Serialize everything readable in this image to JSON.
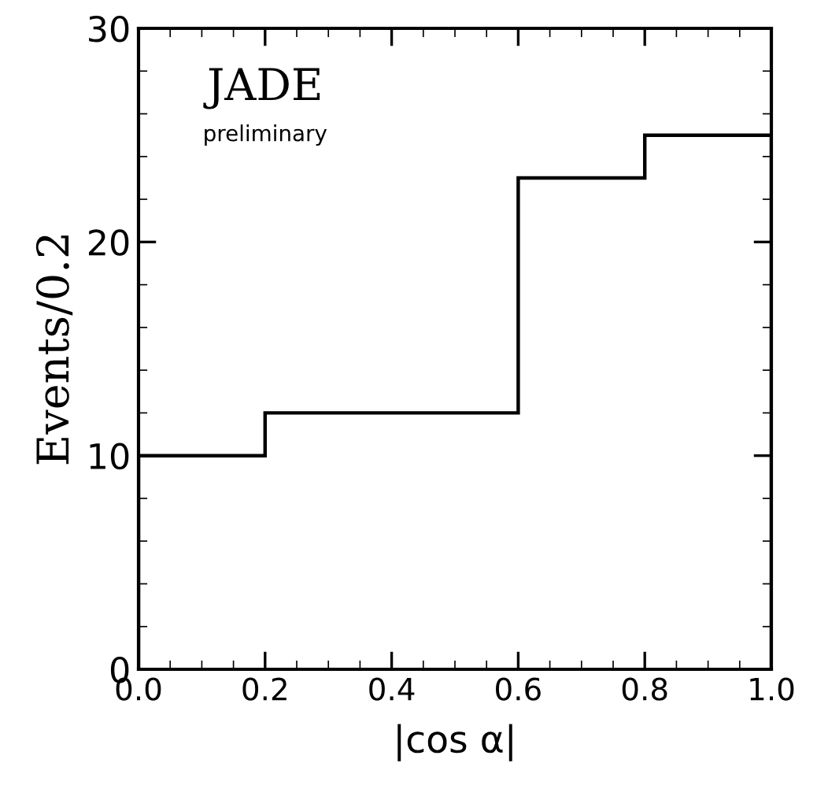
{
  "chart_data": {
    "type": "histogram",
    "title": "JADE",
    "subtitle": "preliminary",
    "xlabel": "|cos α|",
    "ylabel": "Events/0.2",
    "bins": [
      0.0,
      0.2,
      0.4,
      0.6,
      0.8,
      1.0
    ],
    "values": [
      10,
      12,
      12,
      23,
      25
    ],
    "color": "#000000",
    "xlim": [
      0,
      1
    ],
    "ylim": [
      0,
      30
    ],
    "xticks": [
      {
        "value": 0,
        "label": "0.0"
      },
      {
        "value": 0.2,
        "label": "0.2"
      },
      {
        "value": 0.4,
        "label": "0.4"
      },
      {
        "value": 0.6,
        "label": "0.6"
      },
      {
        "value": 0.8,
        "label": "0.8"
      },
      {
        "value": 1,
        "label": "1.0"
      }
    ],
    "yticks": [
      0,
      10,
      20,
      30
    ],
    "grid": false,
    "legend": false
  }
}
